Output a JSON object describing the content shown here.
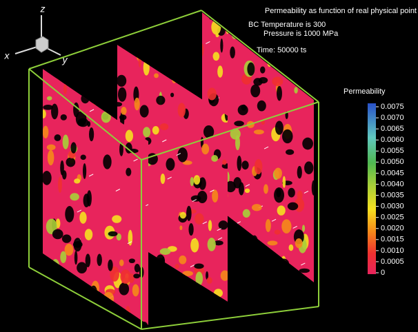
{
  "header": {
    "title": "Permeability as function of real physical point",
    "lines": [
      "BC Temperature is 300",
      "Pressure is 1000 MPa",
      "Time: 50000 ts"
    ]
  },
  "axes_triad": {
    "z": "z",
    "x": "x",
    "y": "y"
  },
  "colorbar": {
    "title": "Permeability",
    "ticks": [
      {
        "value": 0.0075,
        "label": "0.0075"
      },
      {
        "value": 0.007,
        "label": "0.0070"
      },
      {
        "value": 0.0065,
        "label": "0.0065"
      },
      {
        "value": 0.006,
        "label": "0.0060"
      },
      {
        "value": 0.0055,
        "label": "0.0055"
      },
      {
        "value": 0.005,
        "label": "0.0050"
      },
      {
        "value": 0.0045,
        "label": "0.0045"
      },
      {
        "value": 0.004,
        "label": "0.0040"
      },
      {
        "value": 0.0035,
        "label": "0.0035"
      },
      {
        "value": 0.003,
        "label": "0.0030"
      },
      {
        "value": 0.0025,
        "label": "0.0025"
      },
      {
        "value": 0.002,
        "label": "0.0020"
      },
      {
        "value": 0.0015,
        "label": "0.0015"
      },
      {
        "value": 0.001,
        "label": "0.0010"
      },
      {
        "value": 0.0005,
        "label": "0.0005"
      },
      0
    ]
  }
}
